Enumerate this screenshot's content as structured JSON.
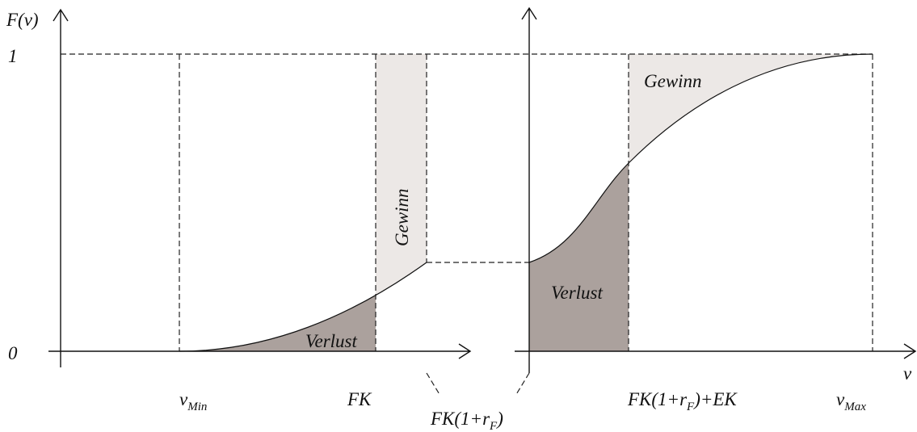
{
  "axes": {
    "y_label": "F(v)",
    "y_one": "1",
    "y_zero": "0",
    "x_label": "v"
  },
  "x_markers": [
    {
      "base": "v",
      "sub": "Min"
    },
    {
      "base": "FK"
    },
    {
      "base": "FK(1+r",
      "sub": "F",
      "tail": ")"
    },
    {
      "base": "FK(1+r",
      "sub": "F",
      "tail": ")+EK"
    },
    {
      "base": "v",
      "sub": "Max"
    }
  ],
  "regions": {
    "left_gewinn": "Gewinn",
    "left_verlust": "Verlust",
    "right_gewinn": "Gewinn",
    "right_verlust": "Verlust"
  }
}
